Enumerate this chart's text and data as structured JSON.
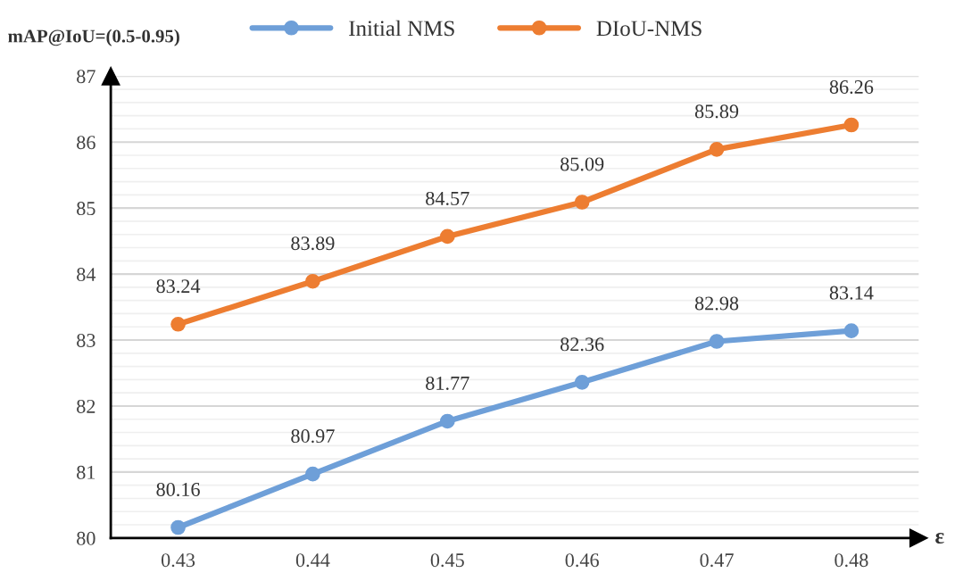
{
  "chart_data": {
    "type": "line",
    "xlabel": "ε",
    "ylabel": "mAP@IoU=(0.5-0.95)",
    "categories": [
      "0.43",
      "0.44",
      "0.45",
      "0.46",
      "0.47",
      "0.48"
    ],
    "series": [
      {
        "name": "Initial NMS",
        "color": "#6e9fd8",
        "values": [
          80.16,
          80.97,
          81.77,
          82.36,
          82.98,
          83.14
        ]
      },
      {
        "name": "DIoU-NMS",
        "color": "#ed7d31",
        "values": [
          83.24,
          83.89,
          84.57,
          85.09,
          85.89,
          86.26
        ]
      }
    ],
    "ylim": [
      80,
      87
    ],
    "yticks": [
      80,
      81,
      82,
      83,
      84,
      85,
      86,
      87
    ],
    "grid": "y",
    "legend": "top",
    "marker": "circle",
    "line_style": "solid",
    "data_labels": true
  }
}
